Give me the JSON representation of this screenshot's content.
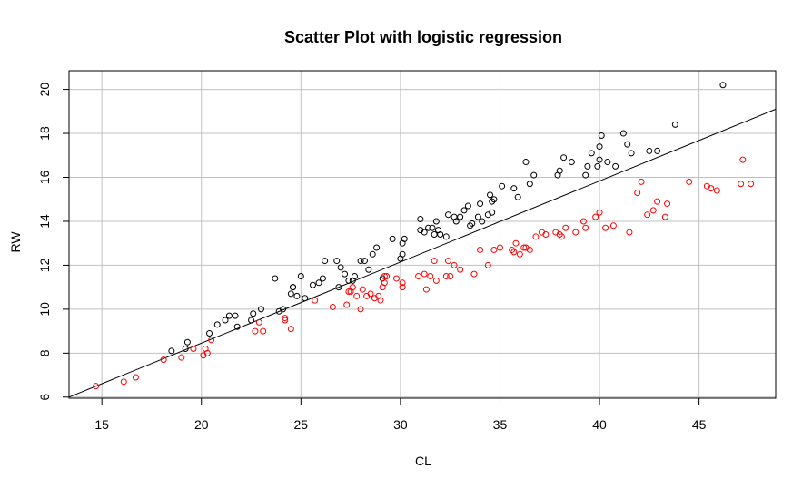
{
  "chart_data": {
    "type": "scatter",
    "title": "Scatter Plot with logistic regression",
    "xlabel": "CL",
    "ylabel": "RW",
    "xlim": [
      13.35,
      48.85
    ],
    "ylim": [
      5.95,
      20.85
    ],
    "x_ticks": [
      15,
      20,
      25,
      30,
      35,
      40,
      45
    ],
    "y_ticks": [
      6,
      8,
      10,
      12,
      14,
      16,
      18,
      20
    ],
    "x_tick_labels": [
      "15",
      "20",
      "25",
      "30",
      "35",
      "40",
      "45"
    ],
    "y_tick_labels": [
      "6",
      "8",
      "10",
      "12",
      "14",
      "16",
      "18",
      "20"
    ],
    "grid": true,
    "grid_color": "#c0c0c0",
    "regression_line": {
      "x": [
        13.35,
        48.85
      ],
      "y": [
        6.0,
        19.1
      ]
    },
    "series": [
      {
        "color": "#000000",
        "points": [
          [
            18.5,
            8.1
          ],
          [
            19.2,
            8.2
          ],
          [
            19.3,
            8.5
          ],
          [
            20.4,
            8.9
          ],
          [
            20.8,
            9.3
          ],
          [
            21.2,
            9.5
          ],
          [
            21.4,
            9.7
          ],
          [
            21.7,
            9.7
          ],
          [
            21.8,
            9.2
          ],
          [
            22.5,
            9.5
          ],
          [
            22.6,
            9.8
          ],
          [
            23.0,
            10.0
          ],
          [
            23.7,
            11.4
          ],
          [
            23.9,
            9.9
          ],
          [
            24.1,
            10.0
          ],
          [
            24.5,
            10.7
          ],
          [
            24.6,
            11.0
          ],
          [
            24.6,
            11.0
          ],
          [
            24.8,
            10.6
          ],
          [
            25.0,
            11.5
          ],
          [
            25.2,
            10.5
          ],
          [
            25.6,
            11.1
          ],
          [
            25.9,
            11.2
          ],
          [
            26.1,
            11.4
          ],
          [
            26.2,
            12.2
          ],
          [
            26.8,
            12.2
          ],
          [
            26.9,
            11.0
          ],
          [
            27.0,
            11.9
          ],
          [
            27.2,
            11.6
          ],
          [
            27.4,
            11.3
          ],
          [
            27.6,
            11.3
          ],
          [
            27.7,
            11.5
          ],
          [
            28.0,
            12.2
          ],
          [
            28.2,
            12.2
          ],
          [
            28.4,
            11.8
          ],
          [
            28.6,
            12.5
          ],
          [
            28.8,
            12.8
          ],
          [
            29.1,
            11.4
          ],
          [
            29.6,
            13.2
          ],
          [
            30.0,
            12.3
          ],
          [
            30.1,
            12.5
          ],
          [
            30.1,
            13.0
          ],
          [
            30.2,
            13.2
          ],
          [
            31.0,
            13.6
          ],
          [
            31.0,
            14.1
          ],
          [
            31.2,
            13.5
          ],
          [
            31.4,
            13.7
          ],
          [
            31.6,
            13.7
          ],
          [
            31.7,
            13.4
          ],
          [
            31.8,
            14.0
          ],
          [
            31.9,
            13.6
          ],
          [
            32.0,
            13.4
          ],
          [
            32.3,
            13.3
          ],
          [
            32.4,
            14.3
          ],
          [
            32.7,
            14.2
          ],
          [
            32.8,
            14.0
          ],
          [
            33.0,
            14.2
          ],
          [
            33.2,
            14.5
          ],
          [
            33.4,
            14.7
          ],
          [
            33.5,
            13.8
          ],
          [
            33.6,
            13.9
          ],
          [
            33.9,
            14.2
          ],
          [
            34.0,
            14.8
          ],
          [
            34.1,
            14.0
          ],
          [
            34.4,
            14.3
          ],
          [
            34.5,
            15.2
          ],
          [
            34.6,
            14.9
          ],
          [
            34.6,
            14.4
          ],
          [
            34.7,
            15.0
          ],
          [
            35.1,
            15.6
          ],
          [
            35.7,
            15.5
          ],
          [
            35.9,
            15.1
          ],
          [
            36.3,
            16.7
          ],
          [
            36.5,
            15.7
          ],
          [
            36.7,
            16.1
          ],
          [
            37.9,
            16.1
          ],
          [
            38.0,
            16.3
          ],
          [
            38.2,
            16.9
          ],
          [
            38.6,
            16.7
          ],
          [
            39.3,
            16.1
          ],
          [
            39.4,
            16.5
          ],
          [
            39.6,
            17.1
          ],
          [
            39.9,
            16.5
          ],
          [
            40.0,
            16.8
          ],
          [
            40.0,
            17.4
          ],
          [
            40.1,
            17.9
          ],
          [
            40.4,
            16.7
          ],
          [
            40.8,
            16.5
          ],
          [
            41.2,
            18.0
          ],
          [
            41.4,
            17.5
          ],
          [
            41.6,
            17.1
          ],
          [
            42.5,
            17.2
          ],
          [
            42.9,
            17.2
          ],
          [
            43.8,
            18.4
          ],
          [
            46.2,
            20.2
          ]
        ]
      },
      {
        "color": "#ff0000",
        "points": [
          [
            14.7,
            6.5
          ],
          [
            16.1,
            6.7
          ],
          [
            16.7,
            6.9
          ],
          [
            18.1,
            7.7
          ],
          [
            19.0,
            7.8
          ],
          [
            19.6,
            8.2
          ],
          [
            20.1,
            7.9
          ],
          [
            20.2,
            8.2
          ],
          [
            20.3,
            8.0
          ],
          [
            20.5,
            8.6
          ],
          [
            22.7,
            9.0
          ],
          [
            22.9,
            9.4
          ],
          [
            23.1,
            9.0
          ],
          [
            24.2,
            9.5
          ],
          [
            24.2,
            9.6
          ],
          [
            24.5,
            9.1
          ],
          [
            25.7,
            10.4
          ],
          [
            26.6,
            10.1
          ],
          [
            27.3,
            10.2
          ],
          [
            27.4,
            10.8
          ],
          [
            27.5,
            10.8
          ],
          [
            27.6,
            11.0
          ],
          [
            27.8,
            10.6
          ],
          [
            28.0,
            10.0
          ],
          [
            28.1,
            10.9
          ],
          [
            28.3,
            10.6
          ],
          [
            28.5,
            10.7
          ],
          [
            28.7,
            10.5
          ],
          [
            28.9,
            10.6
          ],
          [
            29.0,
            10.4
          ],
          [
            29.1,
            11.0
          ],
          [
            29.2,
            11.2
          ],
          [
            29.2,
            11.5
          ],
          [
            29.3,
            11.5
          ],
          [
            29.8,
            11.4
          ],
          [
            30.1,
            11.2
          ],
          [
            30.1,
            11.0
          ],
          [
            30.9,
            11.5
          ],
          [
            31.2,
            11.6
          ],
          [
            31.3,
            10.9
          ],
          [
            31.5,
            11.5
          ],
          [
            31.7,
            12.2
          ],
          [
            31.8,
            11.3
          ],
          [
            32.3,
            11.5
          ],
          [
            32.4,
            12.2
          ],
          [
            32.5,
            11.5
          ],
          [
            32.7,
            12.0
          ],
          [
            33.0,
            11.8
          ],
          [
            33.7,
            11.6
          ],
          [
            34.0,
            12.7
          ],
          [
            34.4,
            12.0
          ],
          [
            34.7,
            12.7
          ],
          [
            35.0,
            12.8
          ],
          [
            35.6,
            12.7
          ],
          [
            35.7,
            12.6
          ],
          [
            35.8,
            13.0
          ],
          [
            36.0,
            12.5
          ],
          [
            36.2,
            12.8
          ],
          [
            36.3,
            12.8
          ],
          [
            36.5,
            12.7
          ],
          [
            36.8,
            13.3
          ],
          [
            37.1,
            13.5
          ],
          [
            37.3,
            13.4
          ],
          [
            37.8,
            13.5
          ],
          [
            38.0,
            13.4
          ],
          [
            38.1,
            13.3
          ],
          [
            38.3,
            13.7
          ],
          [
            38.8,
            13.5
          ],
          [
            39.2,
            14.0
          ],
          [
            39.3,
            13.7
          ],
          [
            39.8,
            14.2
          ],
          [
            40.0,
            14.4
          ],
          [
            40.3,
            13.7
          ],
          [
            40.7,
            13.8
          ],
          [
            41.5,
            13.5
          ],
          [
            41.9,
            15.3
          ],
          [
            42.1,
            15.8
          ],
          [
            42.4,
            14.3
          ],
          [
            42.7,
            14.5
          ],
          [
            42.9,
            14.9
          ],
          [
            43.3,
            14.2
          ],
          [
            43.4,
            14.8
          ],
          [
            44.5,
            15.8
          ],
          [
            45.4,
            15.6
          ],
          [
            45.6,
            15.5
          ],
          [
            45.9,
            15.4
          ],
          [
            47.1,
            15.7
          ],
          [
            47.2,
            16.8
          ],
          [
            47.6,
            15.7
          ]
        ]
      }
    ]
  }
}
